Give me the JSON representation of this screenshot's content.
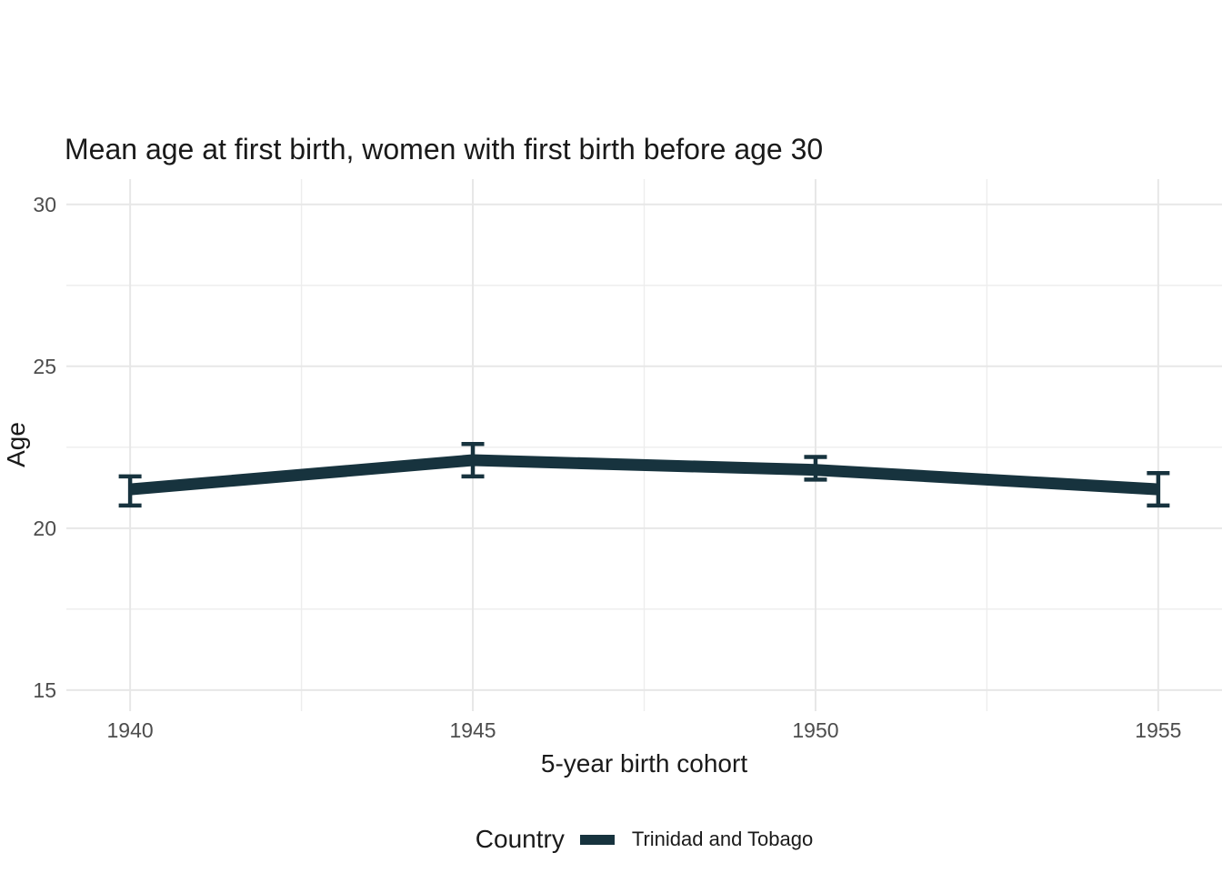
{
  "chart": {
    "title": "Mean age at first birth, women with first birth before age 30",
    "xlabel": "5-year birth cohort",
    "ylabel": "Age",
    "legend": {
      "title": "Country",
      "series_label": "Trinidad and Tobago"
    }
  },
  "chart_data": {
    "type": "line",
    "title": "Mean age at first birth, women with first birth before age 30",
    "xlabel": "5-year birth cohort",
    "ylabel": "Age",
    "x": [
      1940,
      1945,
      1950,
      1955
    ],
    "series": [
      {
        "name": "Trinidad and Tobago",
        "values": [
          21.2,
          22.1,
          21.8,
          21.2
        ],
        "ci_low": [
          20.7,
          21.6,
          21.5,
          20.7
        ],
        "ci_high": [
          21.6,
          22.6,
          22.2,
          21.7
        ]
      }
    ],
    "x_ticks": [
      1940,
      1945,
      1950,
      1955
    ],
    "y_ticks": [
      15,
      20,
      25,
      30
    ],
    "x_minor_ticks": [
      1942.5,
      1947.5,
      1952.5
    ],
    "y_minor_ticks": [
      17.5,
      22.5,
      27.5
    ],
    "xlim": [
      1939.07,
      1955.93
    ],
    "ylim": [
      14.35,
      30.78
    ],
    "grid": true,
    "legend_position": "bottom",
    "error_bars": true
  },
  "colors": {
    "line": "#17333e",
    "grid_major": "#e7e7e7",
    "grid_minor": "#ededed",
    "tick_label": "#4d4d4d",
    "text": "#1a1a1a",
    "background": "#ffffff"
  }
}
